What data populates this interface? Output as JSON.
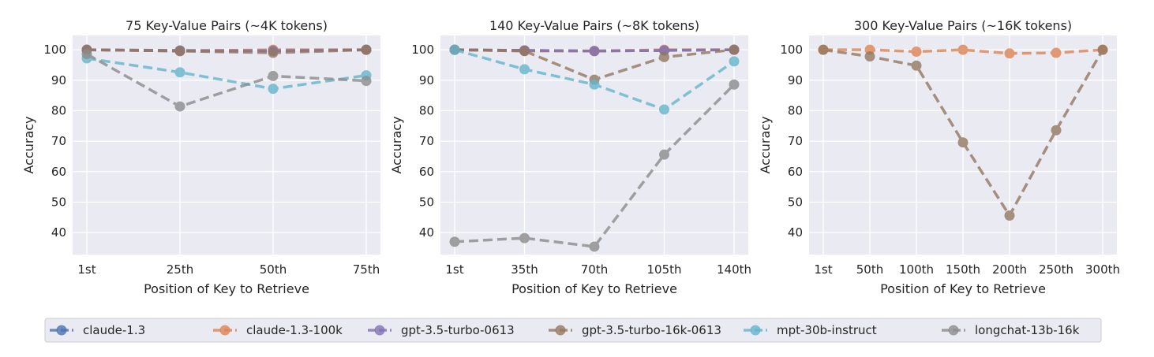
{
  "chart_data": [
    {
      "type": "line",
      "title": "75 Key-Value Pairs (~4K tokens)",
      "xlabel": "Position of Key to Retrieve",
      "ylabel": "Accuracy",
      "categories": [
        "1st",
        "25th",
        "50th",
        "75th"
      ],
      "ylim": [
        32.8,
        104.7
      ],
      "yticks": [
        40,
        50,
        60,
        70,
        80,
        90,
        100
      ],
      "grid": true,
      "series": [
        {
          "name": "claude-1.3",
          "values": [
            100,
            99.8,
            99.8,
            100
          ]
        },
        {
          "name": "claude-1.3-100k",
          "values": [
            100,
            99.6,
            100,
            100
          ]
        },
        {
          "name": "gpt-3.5-turbo-0613",
          "values": [
            100,
            99.6,
            99.6,
            100
          ]
        },
        {
          "name": "gpt-3.5-turbo-16k-0613",
          "values": [
            100,
            99.6,
            99.0,
            100
          ]
        },
        {
          "name": "mpt-30b-instruct",
          "values": [
            97.2,
            92.6,
            87.2,
            91.6
          ]
        },
        {
          "name": "longchat-13b-16k",
          "values": [
            98.6,
            81.4,
            91.4,
            89.8
          ]
        }
      ]
    },
    {
      "type": "line",
      "title": "140 Key-Value Pairs (~8K tokens)",
      "xlabel": "Position of Key to Retrieve",
      "ylabel": "Accuracy",
      "categories": [
        "1st",
        "35th",
        "70th",
        "105th",
        "140th"
      ],
      "ylim": [
        32.8,
        104.7
      ],
      "yticks": [
        40,
        50,
        60,
        70,
        80,
        90,
        100
      ],
      "grid": true,
      "series": [
        {
          "name": "claude-1.3",
          "values": [
            100,
            99.8,
            99.6,
            99.8,
            100
          ]
        },
        {
          "name": "claude-1.3-100k",
          "values": [
            100,
            99.6,
            99.6,
            100,
            100
          ]
        },
        {
          "name": "gpt-3.5-turbo-0613",
          "values": [
            100,
            99.8,
            99.6,
            99.8,
            100
          ]
        },
        {
          "name": "gpt-3.5-turbo-16k-0613",
          "values": [
            100,
            99.6,
            90.2,
            97.6,
            100
          ]
        },
        {
          "name": "mpt-30b-instruct",
          "values": [
            100,
            93.6,
            88.6,
            80.4,
            96.2
          ]
        },
        {
          "name": "longchat-13b-16k",
          "values": [
            37.0,
            38.2,
            35.4,
            65.6,
            88.6
          ]
        }
      ]
    },
    {
      "type": "line",
      "title": "300 Key-Value Pairs (~16K tokens)",
      "xlabel": "Position of Key to Retrieve",
      "ylabel": "Accuracy",
      "categories": [
        "1st",
        "50th",
        "100th",
        "150th",
        "200th",
        "250th",
        "300th"
      ],
      "ylim": [
        32.8,
        104.7
      ],
      "yticks": [
        40,
        50,
        60,
        70,
        80,
        90,
        100
      ],
      "grid": true,
      "series": [
        {
          "name": "claude-1.3-100k",
          "values": [
            100,
            100,
            99.4,
            100,
            98.8,
            99.0,
            100
          ]
        },
        {
          "name": "gpt-3.5-turbo-16k-0613",
          "values": [
            100,
            97.8,
            94.8,
            69.6,
            45.6,
            73.6,
            100
          ]
        }
      ]
    }
  ],
  "legend": {
    "placement": "bottom",
    "entries": [
      {
        "name": "claude-1.3",
        "color": "#4c72b0"
      },
      {
        "name": "claude-1.3-100k",
        "color": "#dd8452"
      },
      {
        "name": "gpt-3.5-turbo-0613",
        "color": "#8172b3"
      },
      {
        "name": "gpt-3.5-turbo-16k-0613",
        "color": "#937860"
      },
      {
        "name": "mpt-30b-instruct",
        "color": "#64b5cd"
      },
      {
        "name": "longchat-13b-16k",
        "color": "#8c8c8c"
      }
    ]
  }
}
